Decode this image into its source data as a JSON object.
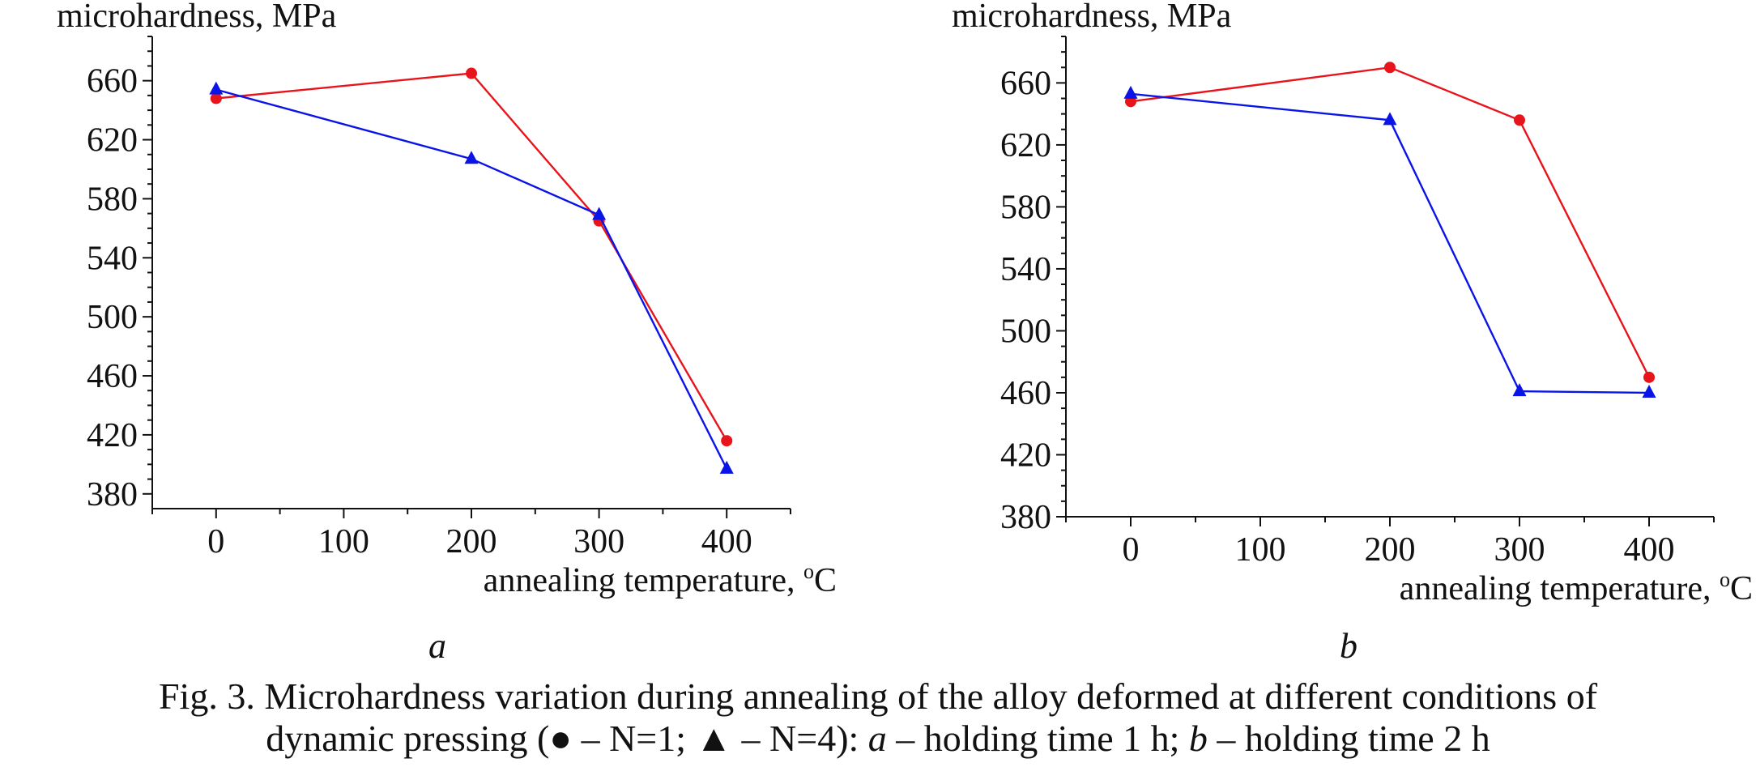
{
  "charts": [
    {
      "ylabel": "microhardness, MPa",
      "xlabel_text": "annealing temperature, ",
      "xlabel_sup": "o",
      "xlabel_unit": "C",
      "panel_label": "a"
    },
    {
      "ylabel": "microhardness, MPa",
      "xlabel_text": "annealing temperature, ",
      "xlabel_sup": "o",
      "xlabel_unit": "C",
      "panel_label": "b"
    }
  ],
  "caption": {
    "line1": "Fig. 3. Microhardness variation during annealing of the alloy deformed at different conditions of",
    "line2_prefix": "dynamic pressing  (● – N=1; ▲ – N=4): ",
    "line2_a": "a",
    "line2_mid": " – holding time 1 h; ",
    "line2_b": "b",
    "line2_suffix": " – holding time 2 h"
  },
  "colors": {
    "series_n1": "#e8141c",
    "series_n4": "#0a14e6",
    "axis": "#111111"
  },
  "chart_data": [
    {
      "type": "line",
      "xlabel": "annealing temperature, °C",
      "ylabel": "microhardness, MPa",
      "xlim": [
        -50,
        450
      ],
      "ylim": [
        370,
        690
      ],
      "xticks": [
        0,
        100,
        200,
        300,
        400
      ],
      "yticks": [
        380,
        420,
        460,
        500,
        540,
        580,
        620,
        660
      ],
      "series": [
        {
          "marker": "circle",
          "color": "#e8141c",
          "x": [
            0,
            200,
            300,
            400
          ],
          "y": [
            648,
            665,
            565,
            416
          ]
        },
        {
          "marker": "triangle",
          "color": "#0a14e6",
          "x": [
            0,
            200,
            300,
            400
          ],
          "y": [
            654,
            607,
            569,
            397
          ]
        }
      ]
    },
    {
      "type": "line",
      "xlabel": "annealing temperature, °C",
      "ylabel": "microhardness, MPa",
      "xlim": [
        -50,
        450
      ],
      "ylim": [
        380,
        690
      ],
      "xticks": [
        0,
        100,
        200,
        300,
        400
      ],
      "yticks": [
        380,
        420,
        460,
        500,
        540,
        580,
        620,
        660
      ],
      "series": [
        {
          "marker": "circle",
          "color": "#e8141c",
          "x": [
            0,
            200,
            300,
            400
          ],
          "y": [
            648,
            670,
            636,
            470
          ]
        },
        {
          "marker": "triangle",
          "color": "#0a14e6",
          "x": [
            0,
            200,
            300,
            400
          ],
          "y": [
            653,
            636,
            461,
            460
          ]
        }
      ]
    }
  ]
}
